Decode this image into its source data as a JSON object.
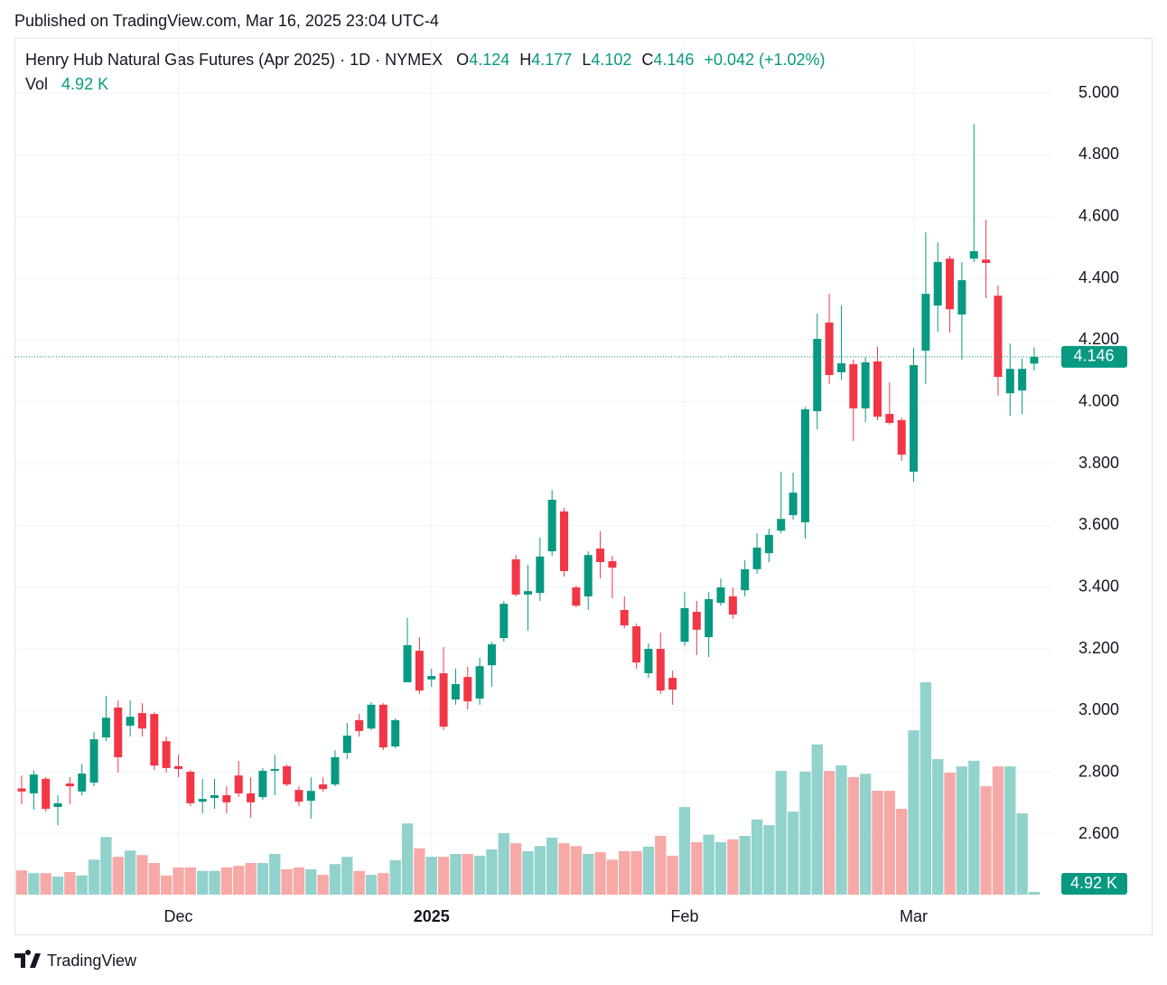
{
  "published": "Published on TradingView.com, Mar 16, 2025 23:04 UTC-4",
  "brand": "TradingView",
  "chart_data": {
    "type": "candlestick",
    "title": "Henry Hub Natural Gas Futures (Apr 2025) · 1D · NYMEX",
    "ohlc_labels": [
      "O",
      "H",
      "L",
      "C"
    ],
    "change_label": "+0.042 (+1.02%)",
    "up_color": "#089981",
    "down_color": "#f23645",
    "volume_up_color": "#92d2cc",
    "volume_down_color": "#f7a9a7",
    "categories": [
      null,
      null,
      null,
      null,
      null,
      null,
      null,
      null,
      null,
      null,
      null,
      null,
      null,
      "Dec",
      null,
      null,
      null,
      null,
      null,
      null,
      null,
      null,
      null,
      null,
      null,
      null,
      null,
      null,
      null,
      null,
      null,
      null,
      null,
      null,
      "2025",
      null,
      null,
      null,
      null,
      null,
      null,
      null,
      null,
      null,
      null,
      null,
      null,
      null,
      null,
      null,
      null,
      null,
      null,
      null,
      null,
      "Feb",
      null,
      null,
      null,
      null,
      null,
      null,
      null,
      null,
      null,
      null,
      null,
      null,
      null,
      null,
      null,
      null,
      null,
      null,
      "Mar",
      null,
      null,
      null,
      null,
      null,
      null,
      null,
      null,
      null,
      null
    ],
    "open": [
      2.748,
      2.732,
      2.779,
      2.688,
      2.764,
      2.738,
      2.767,
      2.913,
      3.01,
      2.951,
      2.992,
      2.989,
      2.901,
      2.82,
      2.802,
      2.705,
      2.717,
      2.726,
      2.79,
      2.732,
      2.72,
      2.805,
      2.82,
      2.743,
      2.708,
      2.761,
      2.761,
      2.863,
      2.969,
      2.942,
      3.019,
      2.884,
      3.092,
      3.194,
      3.101,
      3.121,
      3.036,
      3.109,
      3.039,
      3.147,
      3.235,
      3.49,
      3.376,
      3.381,
      3.516,
      3.645,
      3.399,
      3.37,
      3.525,
      3.484,
      3.326,
      3.273,
      3.121,
      3.2,
      3.106,
      3.223,
      3.32,
      3.238,
      3.349,
      3.37,
      3.39,
      3.458,
      3.51,
      3.583,
      3.633,
      3.61,
      3.97,
      4.257,
      4.096,
      4.122,
      3.979,
      4.131,
      3.961,
      3.941,
      3.774,
      4.166,
      4.312,
      4.464,
      4.283,
      4.464,
      4.461,
      4.344,
      4.028,
      4.037,
      4.124
    ],
    "high": [
      2.79,
      2.806,
      2.785,
      2.726,
      2.785,
      2.828,
      2.931,
      3.048,
      3.033,
      3.033,
      3.024,
      2.995,
      2.916,
      2.857,
      2.808,
      2.779,
      2.779,
      2.755,
      2.837,
      2.784,
      2.814,
      2.857,
      2.825,
      2.755,
      2.784,
      2.784,
      2.872,
      2.96,
      2.989,
      3.027,
      3.024,
      2.975,
      3.3,
      3.238,
      3.136,
      3.206,
      3.136,
      3.142,
      3.171,
      3.223,
      3.355,
      3.504,
      3.472,
      3.56,
      3.715,
      3.657,
      3.405,
      3.516,
      3.581,
      3.501,
      3.37,
      3.282,
      3.218,
      3.253,
      3.13,
      3.384,
      3.355,
      3.384,
      3.428,
      3.399,
      3.487,
      3.575,
      3.589,
      3.774,
      3.771,
      3.984,
      4.286,
      4.35,
      4.312,
      4.137,
      4.145,
      4.178,
      4.064,
      3.949,
      4.175,
      4.549,
      4.517,
      4.473,
      4.453,
      4.9,
      4.59,
      4.377,
      4.189,
      4.14,
      4.177
    ],
    "low": [
      2.697,
      2.679,
      2.673,
      2.629,
      2.697,
      2.726,
      2.755,
      2.901,
      2.799,
      2.916,
      2.916,
      2.808,
      2.799,
      2.784,
      2.691,
      2.667,
      2.682,
      2.667,
      2.72,
      2.653,
      2.711,
      2.726,
      2.755,
      2.691,
      2.65,
      2.738,
      2.755,
      2.843,
      2.916,
      2.937,
      2.872,
      2.878,
      3.092,
      3.054,
      3.077,
      2.937,
      3.019,
      3.004,
      3.019,
      3.077,
      3.223,
      3.37,
      3.259,
      3.355,
      3.501,
      3.434,
      3.335,
      3.326,
      3.428,
      3.364,
      3.267,
      3.136,
      3.106,
      3.054,
      3.019,
      3.209,
      3.18,
      3.174,
      3.34,
      3.297,
      3.37,
      3.443,
      3.481,
      3.575,
      3.619,
      3.557,
      3.911,
      4.058,
      4.072,
      3.873,
      3.935,
      3.941,
      3.926,
      3.809,
      3.741,
      4.058,
      4.227,
      4.224,
      4.137,
      4.453,
      4.336,
      4.02,
      3.955,
      3.961,
      4.102
    ],
    "close": [
      2.738,
      2.793,
      2.682,
      2.7,
      2.755,
      2.796,
      2.907,
      2.977,
      2.849,
      2.98,
      2.942,
      2.822,
      2.814,
      2.811,
      2.7,
      2.714,
      2.726,
      2.703,
      2.732,
      2.703,
      2.805,
      2.811,
      2.761,
      2.705,
      2.74,
      2.746,
      2.849,
      2.919,
      2.934,
      3.019,
      2.881,
      2.969,
      3.212,
      3.065,
      3.112,
      2.948,
      3.086,
      3.03,
      3.144,
      3.215,
      3.346,
      3.376,
      3.387,
      3.499,
      3.683,
      3.452,
      3.34,
      3.504,
      3.481,
      3.463,
      3.276,
      3.156,
      3.2,
      3.065,
      3.068,
      3.332,
      3.262,
      3.361,
      3.399,
      3.311,
      3.458,
      3.528,
      3.569,
      3.621,
      3.706,
      3.976,
      4.204,
      4.087,
      4.125,
      3.979,
      4.128,
      3.952,
      3.932,
      3.829,
      4.119,
      4.35,
      4.453,
      4.3,
      4.394,
      4.488,
      4.45,
      4.081,
      4.107,
      4.107,
      4.146
    ],
    "volume": {
      "name": "Vol",
      "last_label": "4.92 K",
      "values": [
        43,
        38,
        38,
        32,
        40,
        34,
        62,
        102,
        67,
        78,
        70,
        56,
        34,
        48,
        48,
        42,
        42,
        48,
        51,
        56,
        56,
        72,
        45,
        48,
        45,
        35,
        54,
        67,
        42,
        35,
        38,
        61,
        126,
        82,
        67,
        67,
        72,
        72,
        69,
        80,
        109,
        91,
        77,
        86,
        101,
        91,
        86,
        72,
        75,
        62,
        77,
        77,
        85,
        104,
        69,
        155,
        93,
        106,
        93,
        98,
        104,
        133,
        123,
        219,
        147,
        218,
        266,
        219,
        229,
        208,
        214,
        184,
        184,
        152,
        291,
        376,
        240,
        216,
        227,
        237,
        192,
        227,
        227,
        144,
        4.92
      ]
    },
    "volume_ylim": [
      0,
      400
    ],
    "ylim": [
      2.404,
      5.17
    ],
    "yticks": [
      {
        "value": 2.6,
        "label": "2.600"
      },
      {
        "value": 2.8,
        "label": "2.800"
      },
      {
        "value": 3.0,
        "label": "3.000"
      },
      {
        "value": 3.2,
        "label": "3.200"
      },
      {
        "value": 3.4,
        "label": "3.400"
      },
      {
        "value": 3.6,
        "label": "3.600"
      },
      {
        "value": 3.8,
        "label": "3.800"
      },
      {
        "value": 4.0,
        "label": "4.000"
      },
      {
        "value": 4.2,
        "label": "4.200"
      },
      {
        "value": 4.4,
        "label": "4.400"
      },
      {
        "value": 4.6,
        "label": "4.600"
      },
      {
        "value": 4.8,
        "label": "4.800"
      },
      {
        "value": 5.0,
        "label": "5.000"
      }
    ],
    "grid": true
  }
}
